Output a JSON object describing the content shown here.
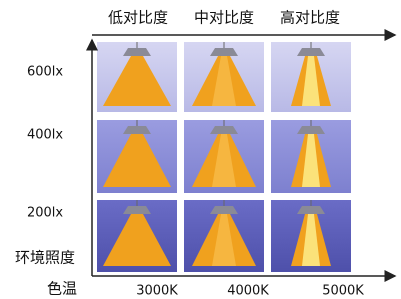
{
  "columns": [
    "低对比度",
    "中对比度",
    "高对比度"
  ],
  "rows": [
    "600lx",
    "400lx",
    "200lx"
  ],
  "y_axis_label": "环境照度",
  "x_axis_label": "色温",
  "x_labels": [
    "3000K",
    "4000K",
    "5000K"
  ]
}
